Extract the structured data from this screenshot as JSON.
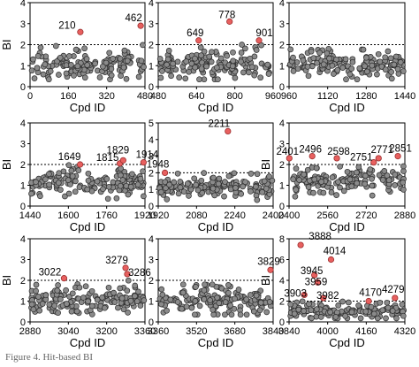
{
  "figure": {
    "caption_fragment": "Figure 4. Hit-based BI",
    "colors": {
      "inactive_fill": "#8a8a8a",
      "inactive_stroke": "#2b2b2b",
      "hit_fill": "#e8605f",
      "hit_stroke": "#9b2f2f"
    }
  },
  "chart_data": [
    {
      "type": "scatter",
      "xlabel": "Cpd ID",
      "ylabel": "BI",
      "xlim": [
        0,
        480
      ],
      "ylim": [
        0,
        4
      ],
      "threshold": 2,
      "xticks": [
        0,
        160,
        320,
        480
      ],
      "xtick_labels": [
        "0",
        "160",
        "320",
        "480"
      ],
      "yticks": [
        0,
        1,
        2,
        3,
        4
      ],
      "ytick_labels": [
        "0",
        "1",
        "2",
        "3",
        "4"
      ],
      "bulk": {
        "y_center": 1.0,
        "y_spread": 0.3,
        "peak": 2.0
      },
      "hits": [
        {
          "x": 210,
          "y": 2.6,
          "label": "210"
        },
        {
          "x": 462,
          "y": 2.9,
          "label": "462"
        }
      ]
    },
    {
      "type": "scatter",
      "xlabel": "Cpd ID",
      "ylabel": "",
      "xlim": [
        480,
        960
      ],
      "ylim": [
        0,
        4
      ],
      "threshold": 2,
      "xticks": [
        480,
        640,
        800,
        960
      ],
      "xtick_labels": [
        "480",
        "640",
        "800",
        "960"
      ],
      "yticks": [
        0,
        1,
        2,
        3,
        4
      ],
      "ytick_labels": [
        "0",
        "1",
        "2",
        "3",
        "4"
      ],
      "bulk": {
        "y_center": 1.05,
        "y_spread": 0.3,
        "peak": 2.0
      },
      "hits": [
        {
          "x": 649,
          "y": 2.2,
          "label": "649"
        },
        {
          "x": 778,
          "y": 3.1,
          "label": "778"
        },
        {
          "x": 901,
          "y": 2.2,
          "label": "901"
        }
      ]
    },
    {
      "type": "scatter",
      "xlabel": "Cpd ID",
      "ylabel": "",
      "xlim": [
        960,
        1440
      ],
      "ylim": [
        0,
        4
      ],
      "threshold": 2,
      "xticks": [
        960,
        1120,
        1280,
        1440
      ],
      "xtick_labels": [
        "960",
        "1120",
        "1280",
        "1440"
      ],
      "yticks": [
        0,
        1,
        2,
        3,
        4
      ],
      "ytick_labels": [
        "0",
        "1",
        "2",
        "3",
        "4"
      ],
      "bulk": {
        "y_center": 1.0,
        "y_spread": 0.28,
        "peak": 1.8
      },
      "hits": []
    },
    {
      "type": "scatter",
      "xlabel": "Cpd ID",
      "ylabel": "BI",
      "xlim": [
        1440,
        1920
      ],
      "ylim": [
        0,
        4
      ],
      "threshold": 2,
      "xticks": [
        1440,
        1600,
        1760,
        1920
      ],
      "xtick_labels": [
        "1440",
        "1600",
        "1760",
        "1920"
      ],
      "yticks": [
        0,
        1,
        2,
        3,
        4
      ],
      "ytick_labels": [
        "0",
        "1",
        "2",
        "3",
        "4"
      ],
      "bulk": {
        "y_center": 1.1,
        "y_spread": 0.3,
        "peak": 2.0
      },
      "hits": [
        {
          "x": 1649,
          "y": 2.0,
          "label": "1649"
        },
        {
          "x": 1815,
          "y": 2.05,
          "label": "1815"
        },
        {
          "x": 1829,
          "y": 2.2,
          "label": "1829"
        },
        {
          "x": 1914,
          "y": 2.1,
          "label": "1914"
        }
      ]
    },
    {
      "type": "scatter",
      "xlabel": "Cpd ID",
      "ylabel": "",
      "xlim": [
        1920,
        2400
      ],
      "ylim": [
        0,
        5
      ],
      "threshold": 2,
      "xticks": [
        1920,
        2080,
        2240,
        2400
      ],
      "xtick_labels": [
        "1920",
        "2080",
        "2240",
        "2400"
      ],
      "yticks": [
        0,
        1,
        2,
        3,
        4,
        5
      ],
      "ytick_labels": [
        "0",
        "1",
        "2",
        "3",
        "4",
        "5"
      ],
      "bulk": {
        "y_center": 1.15,
        "y_spread": 0.3,
        "peak": 2.0
      },
      "hits": [
        {
          "x": 1948,
          "y": 2.0,
          "label": "1948"
        },
        {
          "x": 2211,
          "y": 4.5,
          "label": "2211"
        }
      ]
    },
    {
      "type": "scatter",
      "xlabel": "Cpd ID",
      "ylabel": "BI",
      "xlim": [
        2400,
        2880
      ],
      "ylim": [
        0,
        4
      ],
      "threshold": 2,
      "xticks": [
        2400,
        2560,
        2720,
        2880
      ],
      "xtick_labels": [
        "2400",
        "2560",
        "2720",
        "2880"
      ],
      "yticks": [
        0,
        1,
        2,
        3,
        4
      ],
      "ytick_labels": [
        "0",
        "1",
        "2",
        "3",
        "4"
      ],
      "bulk": {
        "y_center": 1.15,
        "y_spread": 0.32,
        "peak": 2.0
      },
      "hits": [
        {
          "x": 2401,
          "y": 2.3,
          "label": "2401"
        },
        {
          "x": 2496,
          "y": 2.4,
          "label": "2496"
        },
        {
          "x": 2598,
          "y": 2.3,
          "label": "2598"
        },
        {
          "x": 2751,
          "y": 2.1,
          "label": "2751"
        },
        {
          "x": 2771,
          "y": 2.3,
          "label": "2771"
        },
        {
          "x": 2851,
          "y": 2.4,
          "label": "2851"
        }
      ]
    },
    {
      "type": "scatter",
      "xlabel": "Cpd ID",
      "ylabel": "BI",
      "xlim": [
        2880,
        3360
      ],
      "ylim": [
        0,
        4
      ],
      "threshold": 2,
      "xticks": [
        2880,
        3040,
        3200,
        3360
      ],
      "xtick_labels": [
        "2880",
        "3040",
        "3200",
        "3360"
      ],
      "yticks": [
        0,
        1,
        2,
        3,
        4
      ],
      "ytick_labels": [
        "0",
        "1",
        "2",
        "3",
        "4"
      ],
      "bulk": {
        "y_center": 1.0,
        "y_spread": 0.3,
        "peak": 2.0
      },
      "hits": [
        {
          "x": 3022,
          "y": 2.1,
          "label": "3022"
        },
        {
          "x": 3279,
          "y": 2.6,
          "label": "3279"
        },
        {
          "x": 3286,
          "y": 2.3,
          "label": "3286"
        }
      ]
    },
    {
      "type": "scatter",
      "xlabel": "Cpd ID",
      "ylabel": "",
      "xlim": [
        3360,
        3840
      ],
      "ylim": [
        0,
        4
      ],
      "threshold": 2,
      "xticks": [
        3360,
        3520,
        3680,
        3840
      ],
      "xtick_labels": [
        "3360",
        "3520",
        "3680",
        "3840"
      ],
      "yticks": [
        0,
        1,
        2,
        3,
        4
      ],
      "ytick_labels": [
        "0",
        "1",
        "2",
        "3",
        "4"
      ],
      "bulk": {
        "y_center": 1.0,
        "y_spread": 0.32,
        "peak": 1.8
      },
      "hits": [
        {
          "x": 3829,
          "y": 2.5,
          "label": "3829"
        }
      ]
    },
    {
      "type": "scatter",
      "xlabel": "Cpd ID",
      "ylabel": "BI",
      "xlim": [
        3840,
        4320
      ],
      "ylim": [
        0,
        8
      ],
      "threshold": 2,
      "xticks": [
        3840,
        4000,
        4160,
        4320
      ],
      "xtick_labels": [
        "3840",
        "4000",
        "4160",
        "4320"
      ],
      "yticks": [
        0,
        2,
        4,
        6,
        8
      ],
      "ytick_labels": [
        "0",
        "2",
        "4",
        "6",
        "8"
      ],
      "bulk": {
        "y_center": 1.0,
        "y_spread": 0.35,
        "peak": 2.0
      },
      "hits": [
        {
          "x": 3888,
          "y": 7.4,
          "label": "3888"
        },
        {
          "x": 4014,
          "y": 6.0,
          "label": "4014"
        },
        {
          "x": 3945,
          "y": 4.5,
          "label": "3945"
        },
        {
          "x": 3959,
          "y": 3.8,
          "label": "3959"
        },
        {
          "x": 3903,
          "y": 2.6,
          "label": "3903"
        },
        {
          "x": 3982,
          "y": 2.3,
          "label": "3982"
        },
        {
          "x": 4170,
          "y": 2.0,
          "label": "4170"
        },
        {
          "x": 4279,
          "y": 2.3,
          "label": "4279"
        }
      ]
    }
  ]
}
